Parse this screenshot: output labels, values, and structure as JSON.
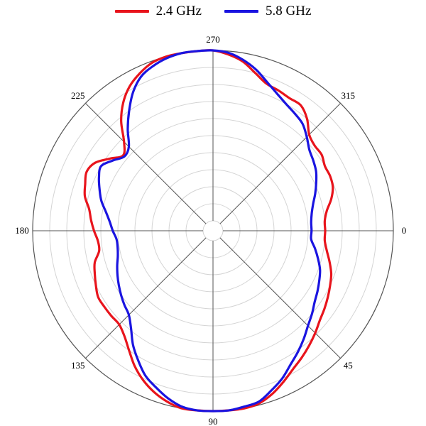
{
  "legend": {
    "items": [
      {
        "label": "2.4 GHz",
        "color": "#e8141c"
      },
      {
        "label": "5.8 GHz",
        "color": "#1a14e0"
      }
    ]
  },
  "chart_data": {
    "type": "line",
    "subtype": "polar",
    "title": "",
    "angle_direction": "clockwise",
    "zero_angle_position": "right",
    "angle_ticks": [
      "0",
      "45",
      "90",
      "135",
      "180",
      "225",
      "270",
      "315"
    ],
    "radial_range": [
      0,
      1
    ],
    "radial_rings": 11,
    "radial_tick_labels": "none",
    "grid": true,
    "legend_position": "top-center",
    "series": [
      {
        "name": "2.4 GHz",
        "color": "#e8141c",
        "angles": [
          0,
          5,
          10,
          15,
          20,
          25,
          30,
          35,
          40,
          45,
          50,
          55,
          60,
          65,
          70,
          75,
          80,
          85,
          90,
          95,
          100,
          105,
          110,
          115,
          120,
          125,
          130,
          135,
          140,
          145,
          150,
          155,
          160,
          165,
          170,
          175,
          180,
          185,
          190,
          195,
          200,
          205,
          210,
          215,
          220,
          225,
          230,
          235,
          240,
          245,
          250,
          255,
          260,
          265,
          270,
          275,
          280,
          285,
          290,
          295,
          300,
          305,
          310,
          315,
          320,
          325,
          330,
          335,
          340,
          345,
          350,
          355
        ],
        "r": [
          0.6,
          0.6,
          0.62,
          0.65,
          0.68,
          0.7,
          0.72,
          0.74,
          0.76,
          0.79,
          0.82,
          0.85,
          0.88,
          0.92,
          0.96,
          0.99,
          1.0,
          1.0,
          1.0,
          1.0,
          1.0,
          0.98,
          0.95,
          0.91,
          0.86,
          0.8,
          0.75,
          0.72,
          0.72,
          0.72,
          0.72,
          0.7,
          0.68,
          0.66,
          0.62,
          0.62,
          0.64,
          0.66,
          0.68,
          0.72,
          0.74,
          0.76,
          0.74,
          0.68,
          0.63,
          0.68,
          0.78,
          0.86,
          0.92,
          0.96,
          0.99,
          1.0,
          1.0,
          1.0,
          1.0,
          0.98,
          0.95,
          0.9,
          0.86,
          0.85,
          0.84,
          0.84,
          0.8,
          0.74,
          0.72,
          0.72,
          0.7,
          0.7,
          0.69,
          0.66,
          0.62,
          0.6
        ]
      },
      {
        "name": "5.8 GHz",
        "color": "#1a14e0",
        "angles": [
          0,
          5,
          10,
          15,
          20,
          25,
          30,
          35,
          40,
          45,
          50,
          55,
          60,
          65,
          70,
          75,
          80,
          85,
          90,
          95,
          100,
          105,
          110,
          115,
          120,
          125,
          130,
          135,
          140,
          145,
          150,
          155,
          160,
          165,
          170,
          175,
          180,
          185,
          190,
          195,
          200,
          205,
          210,
          215,
          220,
          225,
          230,
          235,
          240,
          245,
          250,
          255,
          260,
          265,
          270,
          275,
          280,
          285,
          290,
          295,
          300,
          305,
          310,
          315,
          320,
          325,
          330,
          335,
          340,
          345,
          350,
          355
        ],
        "r": [
          0.52,
          0.52,
          0.55,
          0.58,
          0.61,
          0.63,
          0.65,
          0.67,
          0.7,
          0.73,
          0.77,
          0.81,
          0.85,
          0.9,
          0.94,
          0.98,
          0.99,
          1.0,
          1.0,
          1.0,
          0.99,
          0.96,
          0.92,
          0.88,
          0.82,
          0.76,
          0.69,
          0.64,
          0.62,
          0.6,
          0.58,
          0.56,
          0.54,
          0.52,
          0.51,
          0.51,
          0.53,
          0.55,
          0.58,
          0.62,
          0.65,
          0.68,
          0.7,
          0.66,
          0.62,
          0.64,
          0.72,
          0.8,
          0.88,
          0.94,
          0.97,
          0.99,
          1.0,
          1.0,
          1.0,
          0.99,
          0.96,
          0.92,
          0.87,
          0.83,
          0.8,
          0.78,
          0.76,
          0.72,
          0.68,
          0.66,
          0.64,
          0.61,
          0.58,
          0.55,
          0.53,
          0.52
        ]
      }
    ]
  }
}
